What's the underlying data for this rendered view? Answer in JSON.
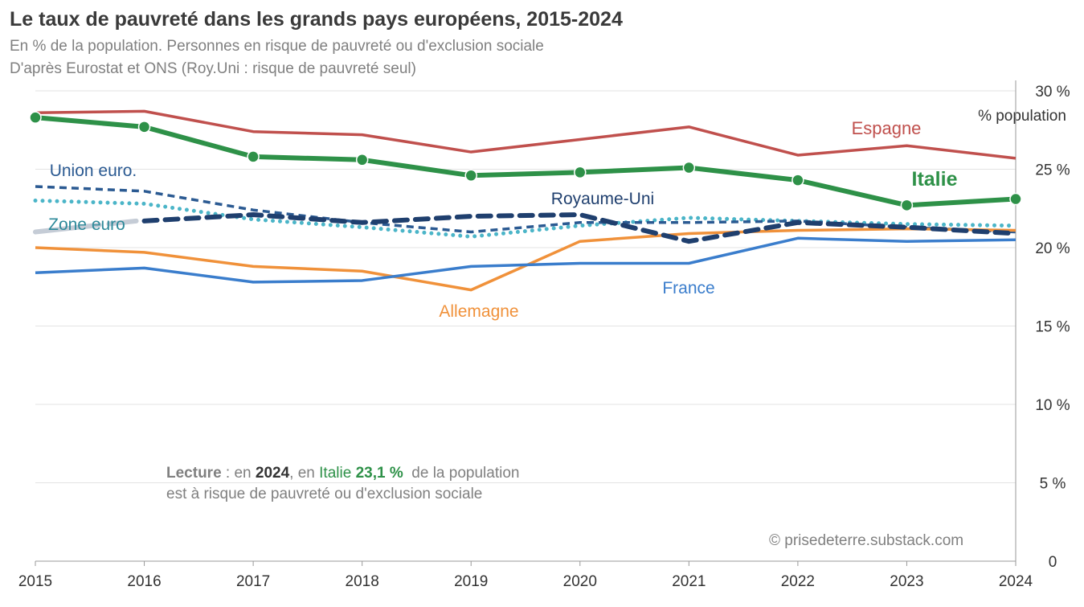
{
  "header": {
    "title": "Le taux de pauvreté dans les grands pays européens, 2015-2024",
    "subtitle1": "En % de la population. Personnes en risque de pauvreté ou d'exclusion sociale",
    "subtitle2": "D'après Eurostat et ONS (Roy.Uni : risque de pauvreté seul)"
  },
  "lecture": {
    "l1a": "Lecture",
    "l1b": " : en ",
    "l1c": "2024",
    "l1d": ", en ",
    "l1e": "Italie",
    "l1f": " 23,1 %",
    "l1g": "  de la population",
    "l2": "est à risque de pauvreté ou d'exclusion sociale"
  },
  "credit": "© prisedeterre.substack.com",
  "chart_data": {
    "type": "line",
    "title": "Le taux de pauvreté dans les grands pays européens, 2015-2024",
    "ylabel": "% population",
    "ylim": [
      0,
      30
    ],
    "x": [
      2015,
      2016,
      2017,
      2018,
      2019,
      2020,
      2021,
      2022,
      2023,
      2024
    ],
    "yticks": [
      "0",
      "5 %",
      "10 %",
      "15 %",
      "20 %",
      "25 %",
      "30 %"
    ],
    "grid": true,
    "series": [
      {
        "name": "Espagne",
        "color": "#c0504d",
        "style": "solid",
        "values": [
          28.6,
          28.7,
          27.4,
          27.2,
          26.1,
          26.9,
          27.7,
          25.9,
          26.5,
          25.7
        ]
      },
      {
        "name": "Italie",
        "color": "#2e9148",
        "style": "markers",
        "values": [
          28.3,
          27.7,
          25.8,
          25.6,
          24.6,
          24.8,
          25.1,
          24.3,
          22.7,
          23.1
        ]
      },
      {
        "name": "Union euro.",
        "color": "#2b5a92",
        "style": "dash",
        "values": [
          23.9,
          23.6,
          22.4,
          21.6,
          21.0,
          21.6,
          21.6,
          21.7,
          21.3,
          21.0
        ]
      },
      {
        "name": "Zone euro",
        "color": "#4bb5c8",
        "style": "dot",
        "values": [
          23.0,
          22.8,
          21.8,
          21.3,
          20.7,
          21.4,
          21.9,
          21.7,
          21.5,
          21.4
        ]
      },
      {
        "name": "Royaume-Uni",
        "color": "#1f3f6e",
        "style": "longdash",
        "values": [
          21.0,
          21.7,
          22.1,
          21.6,
          22.0,
          22.1,
          20.4,
          21.6,
          21.3,
          20.9
        ]
      },
      {
        "name": "Allemagne",
        "color": "#f0913a",
        "style": "solid",
        "values": [
          20.0,
          19.7,
          18.8,
          18.5,
          17.3,
          20.4,
          20.9,
          21.1,
          21.2,
          21.1
        ]
      },
      {
        "name": "France",
        "color": "#3a7dcc",
        "style": "solid",
        "values": [
          18.4,
          18.7,
          17.8,
          17.9,
          18.8,
          19.0,
          19.0,
          20.6,
          20.4,
          20.5
        ]
      }
    ]
  }
}
